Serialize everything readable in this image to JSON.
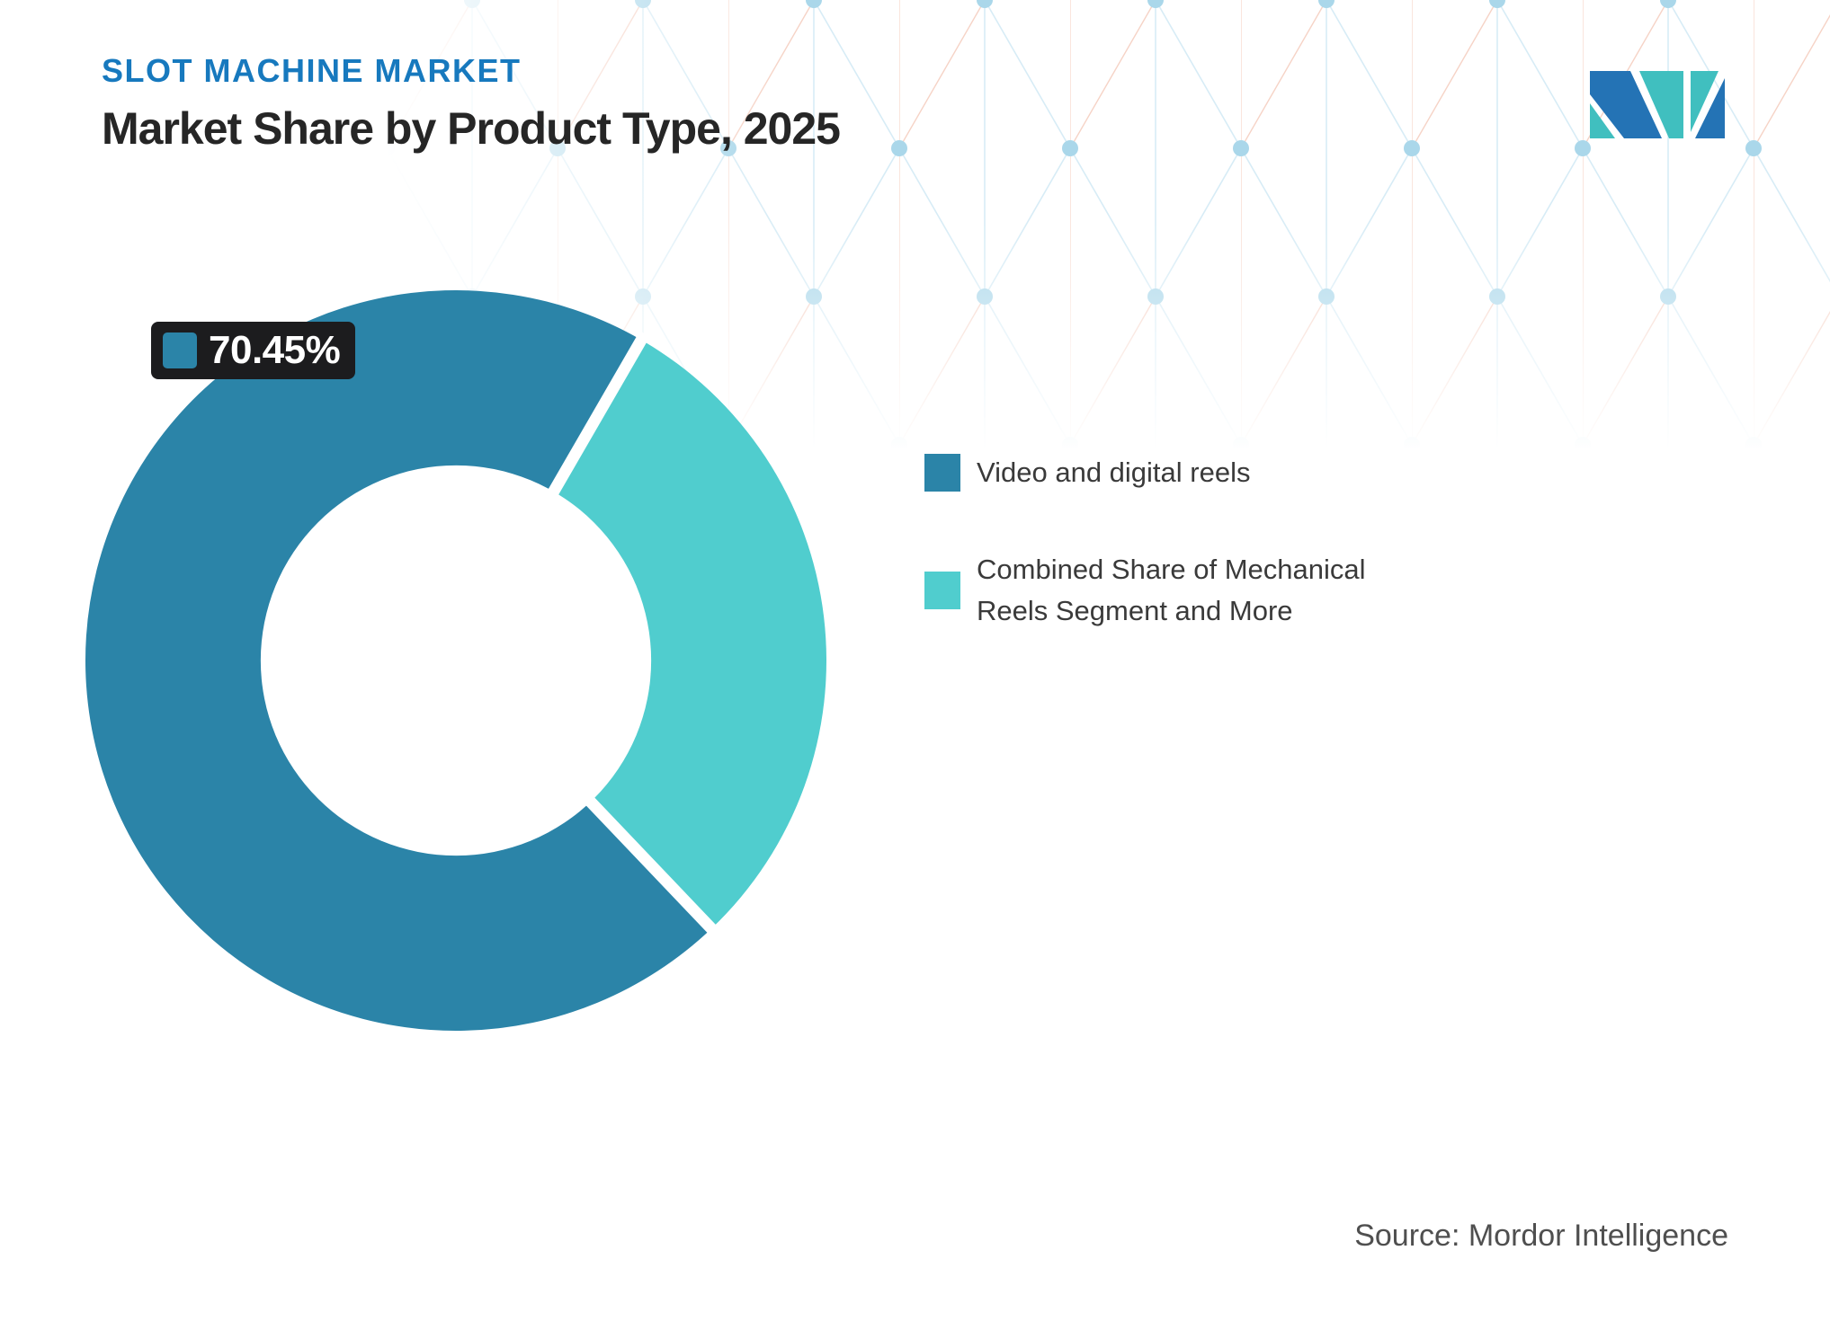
{
  "header": {
    "eyebrow": "SLOT MACHINE MARKET",
    "title": "Market Share by Product Type, 2025"
  },
  "logo": {
    "name": "mordor-intelligence-logo",
    "blue": "#2473B5",
    "teal": "#40BFBF"
  },
  "chart_data": {
    "type": "pie",
    "subtype": "donut",
    "title": "Market Share by Product Type, 2025",
    "slices": [
      {
        "label": "Video and digital reels",
        "value": 70.45,
        "color": "#2B84A8",
        "data_label": "70.45%"
      },
      {
        "label": "Combined Share of Mechanical Reels Segment and More",
        "value": 29.55,
        "color": "#50CDCE",
        "data_label": ""
      }
    ],
    "layout": {
      "start_angle_deg": 136.4,
      "clockwise": true,
      "inner_radius_ratio": 0.527,
      "legend_position": "right",
      "separator_color": "#FFFFFF",
      "separator_width": 13
    }
  },
  "data_label_box": {
    "text": "70.45%",
    "swatch_color": "#2B84A8",
    "background": "#1C1C1E",
    "text_color": "#FFFFFF"
  },
  "source": {
    "text": "Source: Mordor Intelligence"
  },
  "pattern": {
    "line_blue": "#D7ECF6",
    "line_red": "#F6D3C6",
    "dot": "#AAD7EA"
  }
}
